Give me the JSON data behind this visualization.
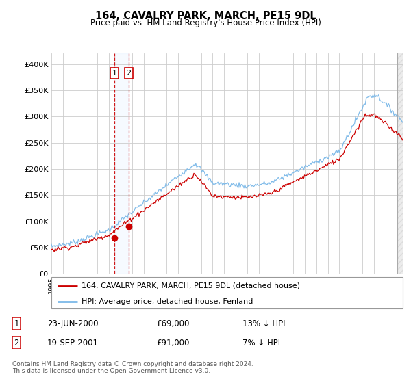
{
  "title": "164, CAVALRY PARK, MARCH, PE15 9DL",
  "subtitle": "Price paid vs. HM Land Registry's House Price Index (HPI)",
  "ylabel_ticks": [
    "£0",
    "£50K",
    "£100K",
    "£150K",
    "£200K",
    "£250K",
    "£300K",
    "£350K",
    "£400K"
  ],
  "ytick_values": [
    0,
    50000,
    100000,
    150000,
    200000,
    250000,
    300000,
    350000,
    400000
  ],
  "ylim": [
    0,
    420000
  ],
  "legend_line1": "164, CAVALRY PARK, MARCH, PE15 9DL (detached house)",
  "legend_line2": "HPI: Average price, detached house, Fenland",
  "sale1_date": "23-JUN-2000",
  "sale1_price": "£69,000",
  "sale1_pct": "13% ↓ HPI",
  "sale1_x": 2000.47,
  "sale1_y": 69000,
  "sale2_date": "19-SEP-2001",
  "sale2_price": "£91,000",
  "sale2_pct": "7% ↓ HPI",
  "sale2_x": 2001.72,
  "sale2_y": 91000,
  "hpi_color": "#7ab8e8",
  "price_color": "#cc0000",
  "sale_dot_color": "#cc0000",
  "vline_color": "#cc0000",
  "shade_color": "#ddeeff",
  "footer": "Contains HM Land Registry data © Crown copyright and database right 2024.\nThis data is licensed under the Open Government Licence v3.0.",
  "xmin": 1995.0,
  "xmax": 2025.5
}
